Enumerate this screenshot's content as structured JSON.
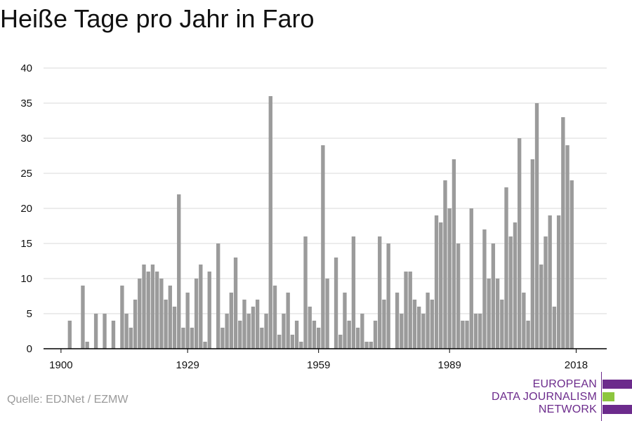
{
  "title": "Heiße Tage pro Jahr in Faro",
  "source": "Quelle: EDJNet / EZMW",
  "logo": {
    "lines": [
      "EUROPEAN",
      "DATA JOURNALISM",
      "NETWORK"
    ],
    "colors": {
      "text": "#6c2b8c",
      "bar_purple": "#6c2b8c",
      "bar_green": "#8dc63f"
    }
  },
  "colors": {
    "bar": "#9b9b9b",
    "grid": "#d9d9d9",
    "axis": "#000000",
    "tick_text": "#111111"
  },
  "chart_data": {
    "type": "bar",
    "title": "Heiße Tage pro Jahr in Faro",
    "xlabel": "",
    "ylabel": "",
    "ylim": [
      0,
      40
    ],
    "yticks": [
      "0",
      "5",
      "10",
      "15",
      "20",
      "25",
      "30",
      "35",
      "40"
    ],
    "xticks": [
      "1900",
      "1929",
      "1959",
      "1989",
      "2018"
    ],
    "xlim": [
      1896,
      2025
    ],
    "grid": true,
    "x": [
      1900,
      1901,
      1902,
      1903,
      1904,
      1905,
      1906,
      1907,
      1908,
      1909,
      1910,
      1911,
      1912,
      1913,
      1914,
      1915,
      1916,
      1917,
      1918,
      1919,
      1920,
      1921,
      1922,
      1923,
      1924,
      1925,
      1926,
      1927,
      1928,
      1929,
      1930,
      1931,
      1932,
      1933,
      1934,
      1935,
      1936,
      1937,
      1938,
      1939,
      1940,
      1941,
      1942,
      1943,
      1944,
      1945,
      1946,
      1947,
      1948,
      1949,
      1950,
      1951,
      1952,
      1953,
      1954,
      1955,
      1956,
      1957,
      1958,
      1959,
      1960,
      1961,
      1962,
      1963,
      1964,
      1965,
      1966,
      1967,
      1968,
      1969,
      1970,
      1971,
      1972,
      1973,
      1974,
      1975,
      1976,
      1977,
      1978,
      1979,
      1980,
      1981,
      1982,
      1983,
      1984,
      1985,
      1986,
      1987,
      1988,
      1989,
      1990,
      1991,
      1992,
      1993,
      1994,
      1995,
      1996,
      1997,
      1998,
      1999,
      2000,
      2001,
      2002,
      2003,
      2004,
      2005,
      2006,
      2007,
      2008,
      2009,
      2010,
      2011,
      2012,
      2013,
      2014,
      2015,
      2016,
      2017,
      2018
    ],
    "values": [
      0,
      0,
      4,
      0,
      0,
      9,
      1,
      0,
      5,
      0,
      5,
      0,
      4,
      0,
      9,
      5,
      3,
      7,
      10,
      12,
      11,
      12,
      11,
      10,
      7,
      9,
      6,
      22,
      3,
      8,
      3,
      10,
      12,
      1,
      11,
      0,
      15,
      3,
      5,
      8,
      13,
      4,
      7,
      5,
      6,
      7,
      3,
      5,
      36,
      9,
      2,
      5,
      8,
      2,
      4,
      1,
      16,
      6,
      4,
      3,
      29,
      10,
      0,
      13,
      2,
      8,
      4,
      16,
      3,
      5,
      1,
      1,
      4,
      16,
      7,
      15,
      0,
      8,
      5,
      11,
      11,
      7,
      6,
      5,
      8,
      7,
      19,
      18,
      24,
      20,
      27,
      15,
      4,
      4,
      20,
      5,
      5,
      17,
      10,
      15,
      10,
      7,
      23,
      16,
      18,
      30,
      8,
      4,
      27,
      35,
      12,
      16,
      19,
      6,
      19,
      33,
      29,
      24,
      0
    ]
  }
}
